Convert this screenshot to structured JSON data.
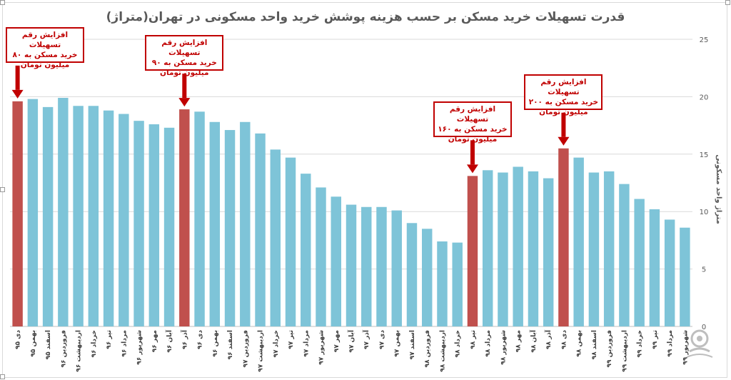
{
  "chart_data": {
    "type": "bar",
    "title": "قدرت تسهیلات خرید مسکن بر حسب هزینه پوشش خرید واحد مسکونی در تهران(متراژ)",
    "ylabel": "متراژ واحد مسکونی",
    "xlabel": "",
    "ylim": [
      0,
      25
    ],
    "yticks": [
      0,
      5,
      10,
      15,
      20,
      25
    ],
    "grid": true,
    "colors": {
      "normal": "#7ec4d8",
      "highlight": "#c0504d"
    },
    "categories": [
      "دی ۹۵",
      "بهمن ۹۵",
      "اسفند ۹۵",
      "فروردین ۹۶",
      "اردیبهشت ۹۶",
      "خرداد ۹۶",
      "تیر ۹۶",
      "مرداد ۹۶",
      "شهریور ۹۶",
      "مهر ۹۶",
      "آبان ۹۶",
      "آذر ۹۶",
      "دی ۹۶",
      "بهمن ۹۶",
      "اسفند ۹۶",
      "فروردین ۹۷",
      "اردیبهشت ۹۷",
      "خرداد ۹۷",
      "تیر ۹۷",
      "مرداد ۹۷",
      "شهریور ۹۷",
      "مهر ۹۷",
      "آبان ۹۷",
      "آذر ۹۷",
      "دی ۹۷",
      "بهمن ۹۷",
      "اسفند ۹۷",
      "فروردین ۹۸",
      "اردیبهشت ۹۸",
      "خرداد ۹۸",
      "تیر ۹۸",
      "مرداد ۹۸",
      "شهریور ۹۸",
      "مهر ۹۸",
      "آبان ۹۸",
      "آذر ۹۸",
      "دی ۹۸",
      "بهمن ۹۸",
      "اسفند ۹۸",
      "فروردین ۹۹",
      "اردیبهشت ۹۹",
      "خرداد ۹۹",
      "تیر ۹۹",
      "مرداد ۹۹",
      "شهریور ۹۹"
    ],
    "values": [
      19.6,
      19.8,
      19.1,
      19.9,
      19.2,
      19.2,
      18.8,
      18.5,
      17.9,
      17.6,
      17.3,
      18.9,
      18.7,
      17.8,
      17.1,
      17.8,
      16.8,
      15.4,
      14.7,
      13.3,
      12.1,
      11.3,
      10.6,
      10.4,
      10.4,
      10.1,
      9.0,
      8.5,
      7.4,
      7.3,
      13.1,
      13.6,
      13.4,
      13.9,
      13.5,
      12.9,
      15.5,
      14.7,
      13.4,
      13.5,
      12.4,
      11.1,
      10.2,
      9.3,
      8.6
    ],
    "highlight_indices": [
      0,
      11,
      30,
      36
    ],
    "annotations": [
      {
        "bar_index": 0,
        "text": "افزایش رقم تسهیلات\nخرید مسکن به ۸۰\nمیلیون تومان"
      },
      {
        "bar_index": 11,
        "text": "افزایش رقم تسهیلات\nخرید مسکن به ۹۰\nمیلیون تومان"
      },
      {
        "bar_index": 30,
        "text": "افزایش رقم تسهیلات\nخرید مسکن به ۱۶۰\nمیلیون تومان"
      },
      {
        "bar_index": 36,
        "text": "افزایش رقم تسهیلات\nخرید مسکن به ۲۰۰\nمیلیون تومان"
      }
    ]
  },
  "watermark_icon": "news-agency-logo-icon"
}
